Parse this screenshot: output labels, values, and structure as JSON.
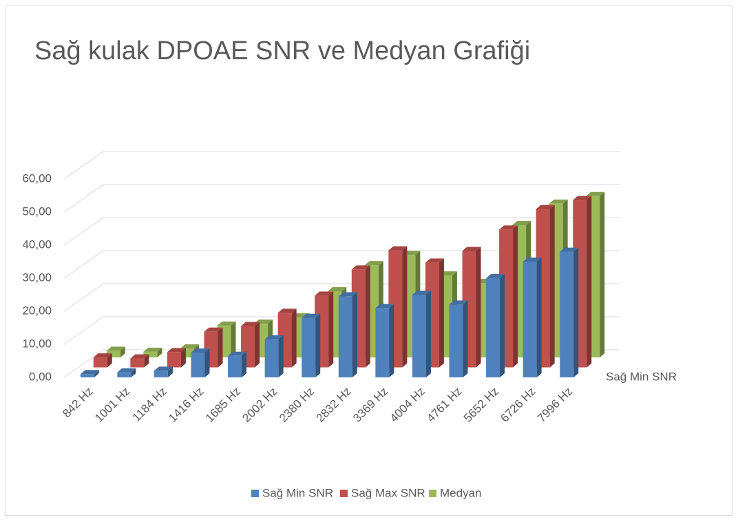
{
  "chart_data": {
    "type": "bar3d",
    "title": "Sağ kulak DPOAE SNR ve Medyan Grafiği",
    "categories": [
      "842 Hz",
      "1001 Hz",
      "1184 Hz",
      "1416 Hz",
      "1685 Hz",
      "2002 Hz",
      "2380 Hz",
      "2832 Hz",
      "3369 Hz",
      "4004 Hz",
      "4761 Hz",
      "5652 Hz",
      "6726 Hz",
      "7996 Hz"
    ],
    "series": [
      {
        "name": "Sağ Min SNR",
        "color": "#4f81bd",
        "values": [
          1.0,
          1.5,
          2.0,
          7.5,
          6.5,
          11.5,
          18.0,
          24.5,
          21.0,
          25.0,
          22.0,
          30.0,
          35.0,
          38.0
        ]
      },
      {
        "name": "Sağ Max SNR",
        "color": "#c0504d",
        "values": [
          3.0,
          2.7,
          4.6,
          10.8,
          12.5,
          16.5,
          21.7,
          29.6,
          35.4,
          31.7,
          35.2,
          41.7,
          47.9,
          50.6
        ]
      },
      {
        "name": "Medyan",
        "color": "#9bbb59",
        "values": [
          2.0,
          1.7,
          2.7,
          9.6,
          10.2,
          12.1,
          20.0,
          27.9,
          31.0,
          24.8,
          22.5,
          40.0,
          46.5,
          48.8
        ]
      }
    ],
    "ylim": [
      0,
      60
    ],
    "yticks": [
      {
        "value": 0,
        "label": "0,00"
      },
      {
        "value": 10,
        "label": "10,00"
      },
      {
        "value": 20,
        "label": "20,00"
      },
      {
        "value": 30,
        "label": "30,00"
      },
      {
        "value": 40,
        "label": "40,00"
      },
      {
        "value": 50,
        "label": "50,00"
      },
      {
        "value": 60,
        "label": "60,00"
      }
    ],
    "grid": true,
    "legend": "bottom"
  }
}
